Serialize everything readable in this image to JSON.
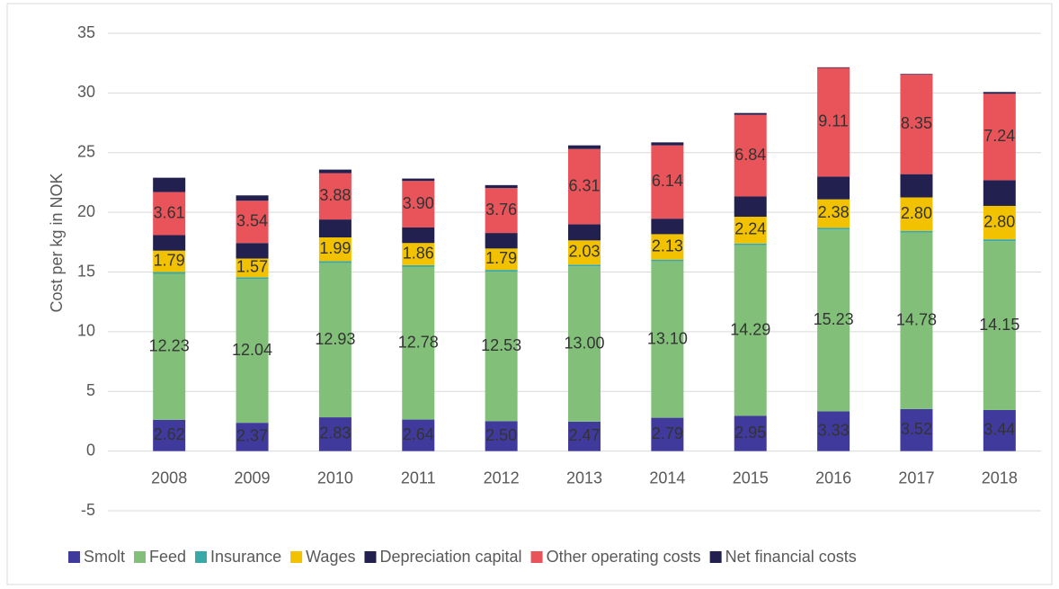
{
  "chart_data": {
    "type": "stacked_bar",
    "y_label": "Cost per kg in NOK",
    "categories": [
      "2008",
      "2009",
      "2010",
      "2011",
      "2012",
      "2013",
      "2014",
      "2015",
      "2016",
      "2017",
      "2018"
    ],
    "series": [
      {
        "name": "Smolt",
        "color": "#3f3a9c",
        "values": [
          2.62,
          2.37,
          2.83,
          2.64,
          2.5,
          2.47,
          2.79,
          2.95,
          3.33,
          3.52,
          3.44
        ],
        "value_labels": [
          "2.62",
          "2.37",
          "2.83",
          "2.64",
          "2.50",
          "2.47",
          "2.79",
          "2.95",
          "3.33",
          "3.52",
          "3.44"
        ]
      },
      {
        "name": "Feed",
        "color": "#82c07a",
        "values": [
          12.23,
          12.04,
          12.93,
          12.78,
          12.53,
          13.0,
          13.1,
          14.29,
          15.23,
          14.78,
          14.15
        ],
        "value_labels": [
          "12.23",
          "12.04",
          "12.93",
          "12.78",
          "12.53",
          "13.00",
          "13.10",
          "14.29",
          "15.23",
          "14.78",
          "14.15"
        ]
      },
      {
        "name": "Insurance",
        "color": "#3aa8a8",
        "values": [
          0.15,
          0.15,
          0.15,
          0.15,
          0.15,
          0.15,
          0.15,
          0.15,
          0.15,
          0.15,
          0.15
        ]
      },
      {
        "name": "Wages",
        "color": "#f2c200",
        "values": [
          1.79,
          1.57,
          1.99,
          1.86,
          1.79,
          2.03,
          2.13,
          2.24,
          2.38,
          2.8,
          2.8
        ],
        "value_labels": [
          "1.79",
          "1.57",
          "1.99",
          "1.86",
          "1.79",
          "2.03",
          "2.13",
          "2.24",
          "2.38",
          "2.80",
          "2.80"
        ]
      },
      {
        "name": "Depreciation capital",
        "color": "#22204f",
        "values": [
          1.3,
          1.3,
          1.5,
          1.3,
          1.3,
          1.35,
          1.3,
          1.7,
          1.9,
          1.95,
          2.15
        ]
      },
      {
        "name": "Other operating costs",
        "color": "#e8545a",
        "values": [
          3.61,
          3.54,
          3.88,
          3.9,
          3.76,
          6.31,
          6.14,
          6.84,
          9.11,
          8.35,
          7.24
        ],
        "value_labels": [
          "3.61",
          "3.54",
          "3.88",
          "3.90",
          "3.76",
          "6.31",
          "6.14",
          "6.84",
          "9.11",
          "8.35",
          "7.24"
        ]
      },
      {
        "name": "Net financial costs",
        "color": "#22204f",
        "values": [
          1.2,
          0.45,
          0.3,
          0.2,
          0.25,
          0.3,
          0.25,
          0.15,
          0.05,
          0.05,
          0.15
        ]
      }
    ],
    "ylim": [
      -5,
      35
    ],
    "yticks": [
      -5,
      0,
      5,
      10,
      15,
      20,
      25,
      30,
      35
    ],
    "grid": true,
    "legend": "bottom"
  }
}
